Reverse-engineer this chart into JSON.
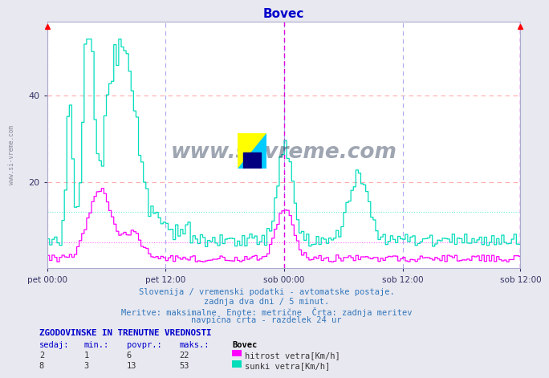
{
  "title": "Bovec",
  "title_color": "#0000cc",
  "bg_color": "#e8e8f0",
  "plot_bg_color": "#ffffff",
  "grid_color_h": "#ffaaaa",
  "grid_color_v": "#aaaaee",
  "n_points": 576,
  "hitrost_color": "#ff00ff",
  "sunki_color": "#00ddbb",
  "hitrost_mean": 6,
  "sunki_mean": 13,
  "vline_color": "#dd00dd",
  "footer_color": "#3377bb",
  "label_color": "#0000cc",
  "table_header_color": "#0000cc",
  "watermark_color": "#2a3a55",
  "text_line1": "Slovenija / vremenski podatki - avtomatske postaje.",
  "text_line2": "zadnja dva dni / 5 minut.",
  "text_line3": "Meritve: maksimalne  Enote: metrične  Črta: zadnja meritev",
  "text_line4": "navpična črta - razdelek 24 ur",
  "table_title": "ZGODOVINSKE IN TRENUTNE VREDNOSTI",
  "col_headers": [
    "sedaj:",
    "min.:",
    "povpr.:",
    "maks.:"
  ],
  "row1_vals": [
    "2",
    "1",
    "6",
    "22"
  ],
  "row2_vals": [
    "8",
    "3",
    "13",
    "53"
  ],
  "legend1": "hitrost vetra[Km/h]",
  "legend2": "sunki vetra[Km/h]",
  "xtick_labels": [
    "pet 00:00",
    "pet 12:00",
    "sob 00:00",
    "sob 12:00"
  ],
  "ytick_labels": [
    "20",
    "40"
  ],
  "ytick_vals": [
    20,
    40
  ],
  "ylim": [
    0,
    57
  ],
  "xlim": [
    0,
    575
  ]
}
